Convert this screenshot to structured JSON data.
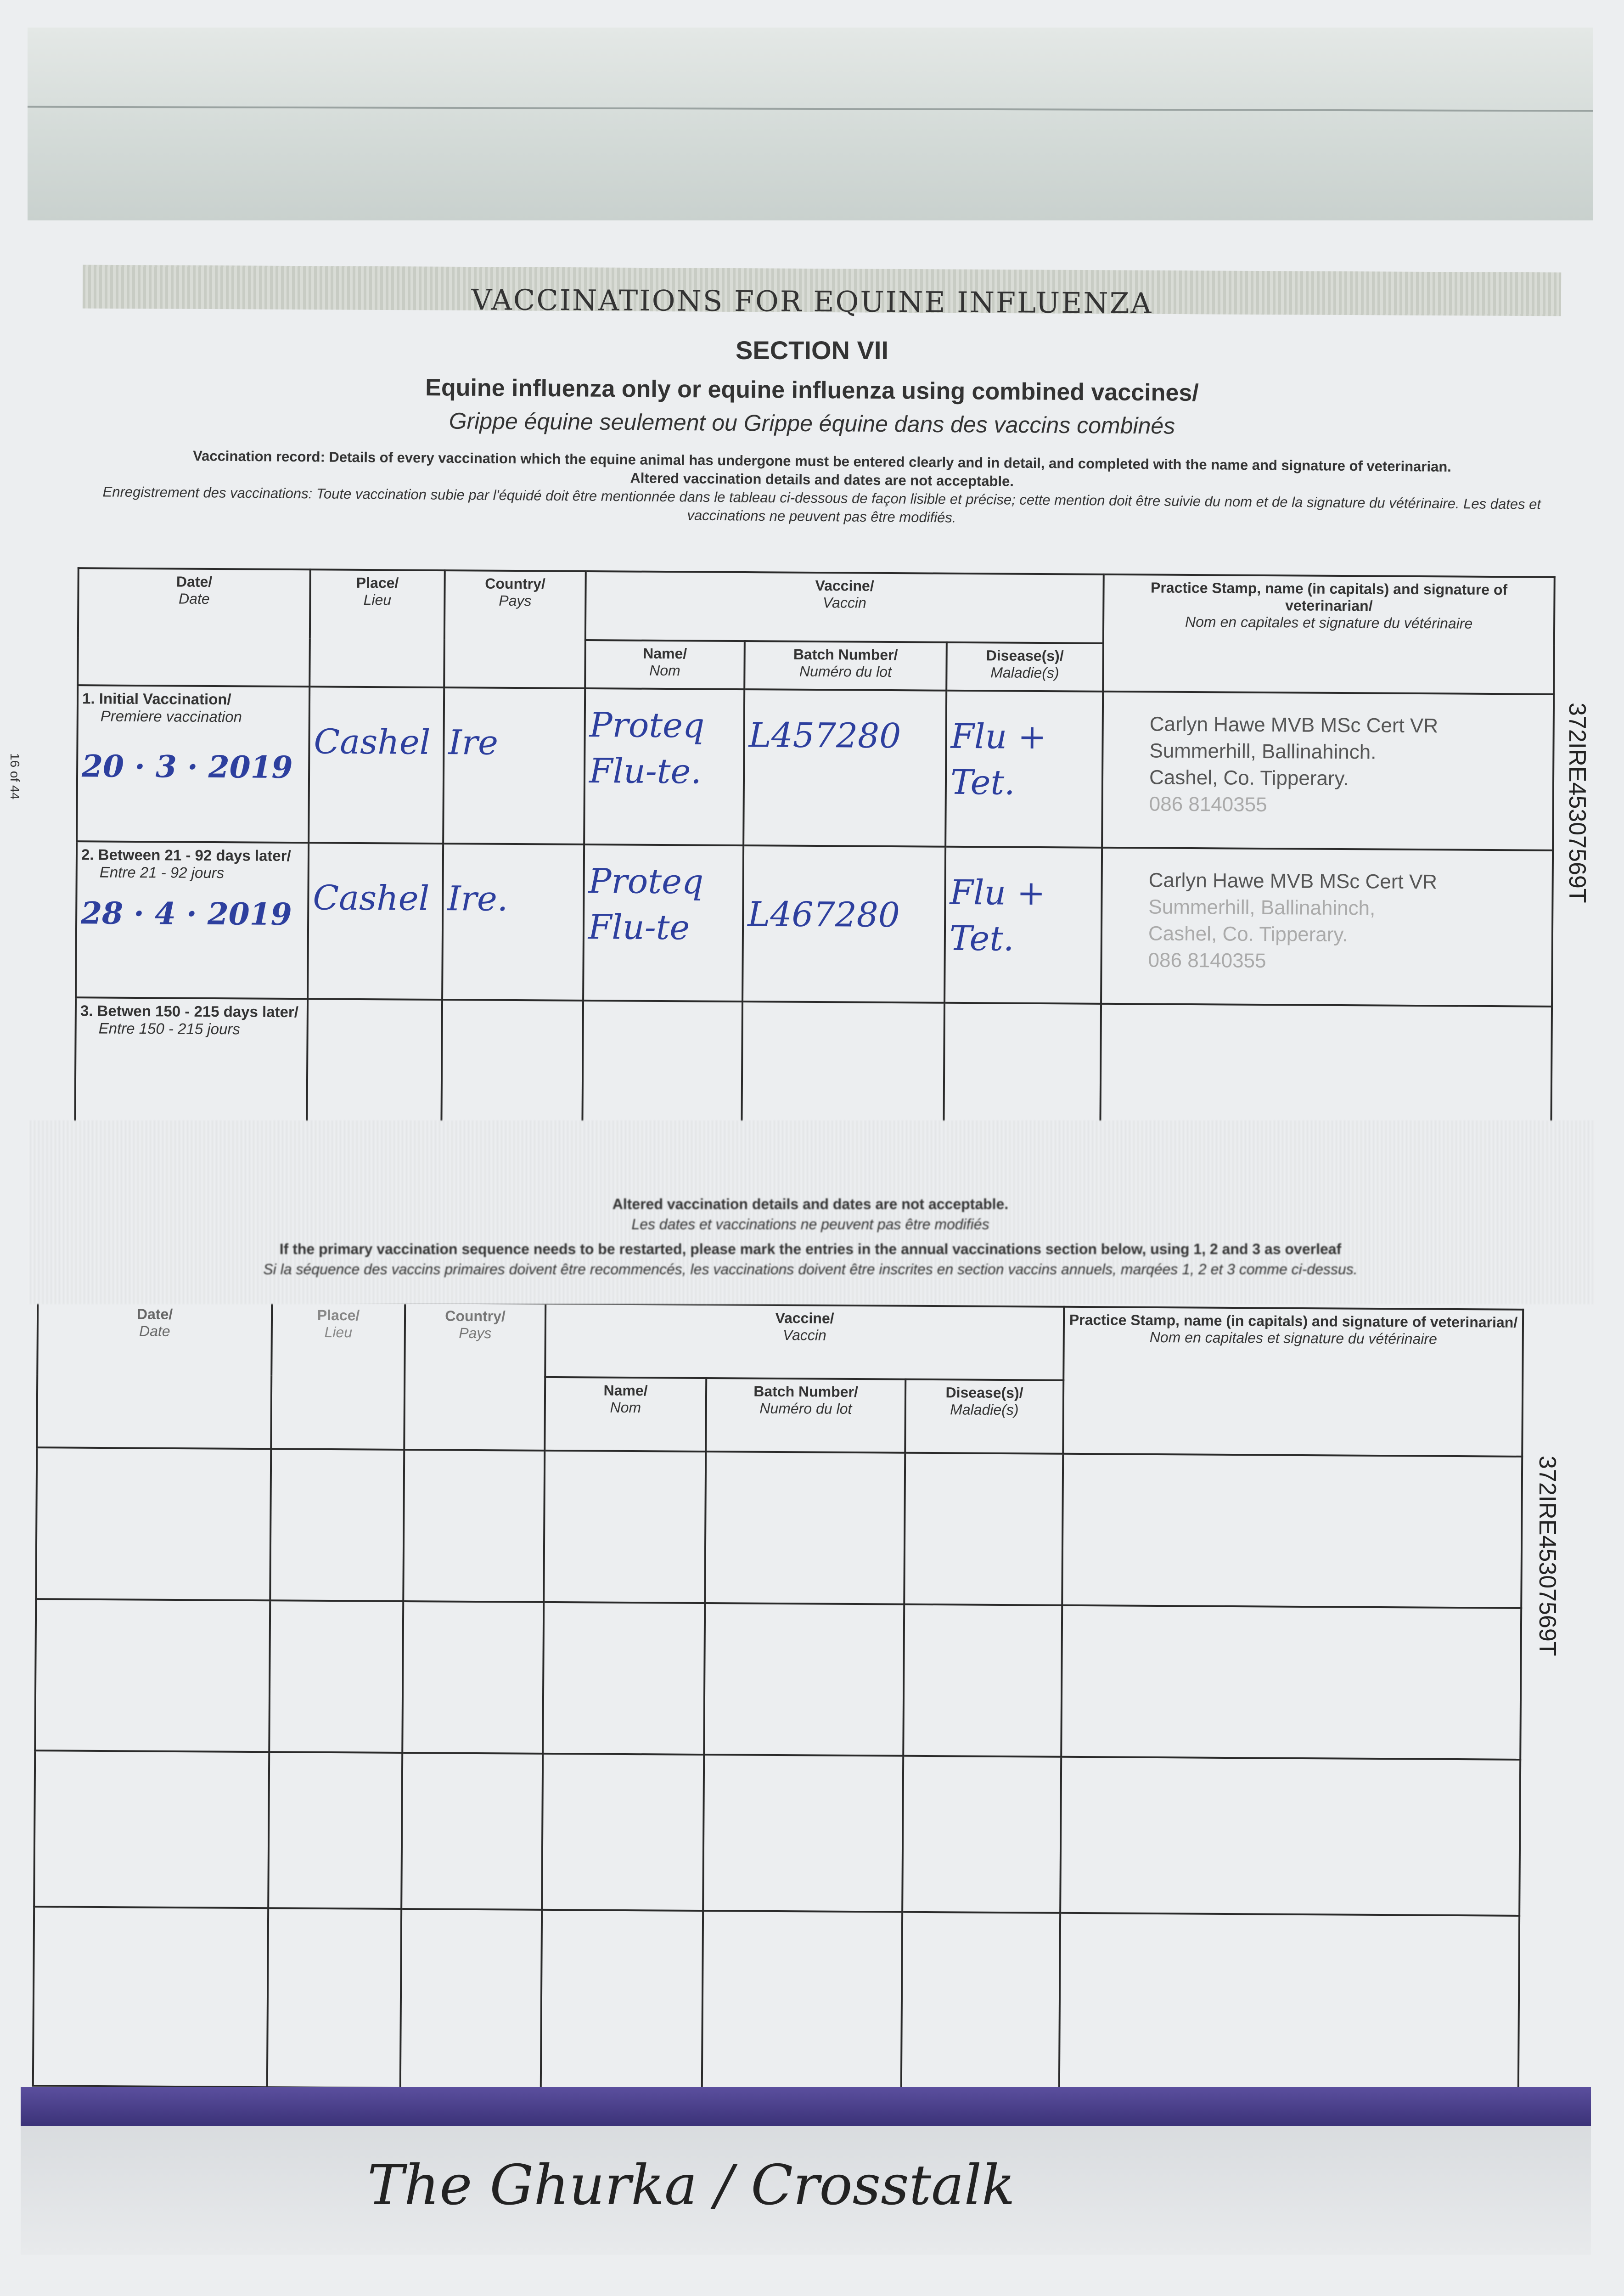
{
  "page_number": "16 of 44",
  "title": "VACCINATIONS FOR EQUINE INFLUENZA",
  "section": "SECTION VII",
  "subtitle_en": "Equine influenza only or equine influenza using combined vaccines/",
  "subtitle_fr": "Grippe équine seulement ou Grippe équine dans des vaccins combinés",
  "instructions": {
    "en_label": "Vaccination record:",
    "en_text": "Details of every vaccination which the equine animal has undergone must be entered clearly and in detail, and completed with the name and signature of veterinarian.",
    "en_altered": "Altered vaccination details and dates are not acceptable.",
    "fr_label": "Enregistrement des vaccinations:",
    "fr_text": "Toute vaccination subie par l'équidé doit être mentionnée dans le tableau ci-dessous de façon lisible et précise; cette mention doit être suivie du nom et de la signature du vétérinaire. Les dates et vaccinations ne peuvent pas être modifiés."
  },
  "columns": {
    "date": {
      "en": "Date/",
      "fr": "Date"
    },
    "place": {
      "en": "Place/",
      "fr": "Lieu"
    },
    "country": {
      "en": "Country/",
      "fr": "Pays"
    },
    "vaccine": {
      "en": "Vaccine/",
      "fr": "Vaccin"
    },
    "name": {
      "en": "Name/",
      "fr": "Nom"
    },
    "batch": {
      "en": "Batch Number/",
      "fr": "Numéro du lot"
    },
    "disease": {
      "en": "Disease(s)/",
      "fr": "Maladie(s)"
    },
    "stamp": {
      "en": "Practice Stamp, name (in capitals) and signature of veterinarian/",
      "fr": "Nom en capitales et signature du vétérinaire"
    }
  },
  "primary_rows": [
    {
      "label_en": "1. Initial Vaccination/",
      "label_fr": "Premiere vaccination",
      "date": "20 · 3 · 2019",
      "place": "Cashel",
      "country": "Ire",
      "name": "Proteq Flu-te.",
      "batch": "L457280",
      "disease": "Flu + Tet.",
      "stamp": {
        "line1": "Carlyn Hawe MVB MSc Cert VR",
        "line2": "Summerhill, Ballinahinch.",
        "line3": "Cashel, Co. Tipperary.",
        "line4": "086 8140355"
      }
    },
    {
      "label_en": "2. Between 21 - 92 days later/",
      "label_fr": "Entre 21 - 92 jours",
      "date": "28 · 4 · 2019",
      "place": "Cashel",
      "country": "Ire.",
      "name": "Proteq Flu-te",
      "batch": "L467280",
      "disease": "Flu + Tet.",
      "stamp": {
        "line1": "Carlyn Hawe MVB MSc Cert VR",
        "line2": "Summerhill, Ballinahinch,",
        "line3": "Cashel, Co. Tipperary.",
        "line4": "086 8140355"
      }
    },
    {
      "label_en": "3. Betwen 150 - 215 days later/",
      "label_fr": "Entre 150 - 215 jours",
      "date": "",
      "place": "",
      "country": "",
      "name": "",
      "batch": "",
      "disease": "",
      "stamp": {}
    }
  ],
  "passport_id": "372IRE45307569T",
  "lower_section": {
    "altered_en": "Altered vaccination details and dates are not acceptable.",
    "altered_fr": "Les dates et vaccinations ne peuvent pas être modifiés",
    "restart_en": "If the primary vaccination sequence needs to be restarted, please mark the entries in the annual vaccinations section below, using 1, 2 and 3 as overleaf",
    "restart_fr": "Si la séquence des vaccins primaires doivent être recommencés, les vaccinations doivent être inscrites en section vaccins annuels, marqées 1, 2 et 3 comme ci-dessus."
  },
  "handwritten_footer": "The Ghurka / Crosstalk",
  "colors": {
    "ink": "#2d3f9e",
    "cover_band": "#4a3f8a"
  }
}
